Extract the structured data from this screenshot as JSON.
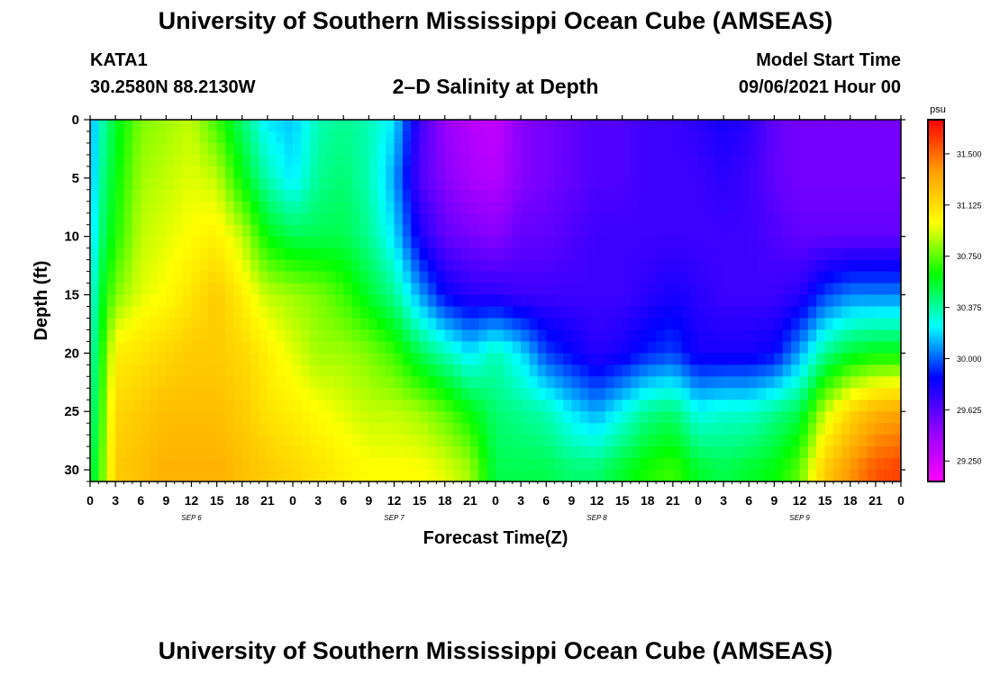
{
  "header": {
    "title": "University of Southern Mississippi Ocean Cube (AMSEAS)",
    "station": "KATA1",
    "coords": "30.2580N  88.2130W",
    "plot_title": "2–D Salinity at Depth",
    "start_label": "Model Start Time",
    "start_value": "09/06/2021 Hour 00"
  },
  "footer": {
    "title": "University of Southern Mississippi Ocean Cube (AMSEAS)"
  },
  "chart_data": {
    "type": "heatmap",
    "title": "2–D Salinity at Depth",
    "xlabel": "Forecast Time(Z)",
    "ylabel": "Depth (ft)",
    "x_hours_range": [
      0,
      96
    ],
    "x_tick_labels": [
      "0",
      "3",
      "6",
      "9",
      "12",
      "15",
      "18",
      "21",
      "0",
      "3",
      "6",
      "9",
      "12",
      "15",
      "18",
      "21",
      "0",
      "3",
      "6",
      "9",
      "12",
      "15",
      "18",
      "21",
      "0",
      "3",
      "6",
      "9",
      "12",
      "15",
      "18",
      "21",
      "0"
    ],
    "day_labels": [
      {
        "text": "SEP 6",
        "hour": 12
      },
      {
        "text": "SEP 7",
        "hour": 36
      },
      {
        "text": "SEP 8",
        "hour": 60
      },
      {
        "text": "SEP 9",
        "hour": 84
      }
    ],
    "y_range": [
      0,
      31
    ],
    "y_ticks": [
      0,
      5,
      10,
      15,
      20,
      25,
      30
    ],
    "colorbar": {
      "unit": "psu",
      "range": [
        29.1,
        31.75
      ],
      "ticks": [
        "31.500",
        "31.125",
        "30.750",
        "30.375",
        "30.000",
        "29.625",
        "29.250"
      ],
      "tick_values": [
        31.5,
        31.125,
        30.75,
        30.375,
        30.0,
        29.625,
        29.25
      ],
      "colors": [
        "#ff00ff",
        "#9000ff",
        "#0000ff",
        "#00ffff",
        "#00ff00",
        "#ffff00",
        "#ffa000",
        "#ff0000"
      ]
    },
    "salinity_grid": {
      "hours": [
        0,
        1,
        3,
        6,
        9,
        12,
        15,
        18,
        21,
        24,
        27,
        30,
        33,
        36,
        39,
        42,
        45,
        48,
        51,
        54,
        57,
        60,
        63,
        66,
        69,
        72,
        75,
        78,
        81,
        84,
        87,
        90,
        93,
        96
      ],
      "depths": [
        0,
        5,
        10,
        15,
        20,
        25,
        30
      ],
      "values": [
        [
          30.05,
          30.05,
          30.1,
          30.2,
          30.3,
          30.35,
          30.45
        ],
        [
          30.3,
          30.35,
          30.4,
          30.5,
          30.55,
          30.6,
          30.65
        ],
        [
          30.55,
          30.6,
          30.65,
          30.8,
          31.05,
          31.15,
          31.2
        ],
        [
          30.8,
          30.85,
          30.9,
          30.95,
          31.1,
          31.2,
          31.25
        ],
        [
          30.85,
          30.9,
          30.95,
          31.0,
          31.15,
          31.25,
          31.3
        ],
        [
          30.9,
          30.95,
          31.0,
          31.1,
          31.2,
          31.25,
          31.3
        ],
        [
          30.7,
          30.9,
          31.05,
          31.2,
          31.2,
          31.25,
          31.3
        ],
        [
          30.45,
          30.6,
          30.9,
          31.05,
          31.15,
          31.2,
          31.25
        ],
        [
          30.2,
          30.35,
          30.6,
          30.9,
          31.05,
          31.1,
          31.2
        ],
        [
          30.15,
          30.2,
          30.5,
          30.85,
          30.95,
          31.05,
          31.15
        ],
        [
          30.35,
          30.4,
          30.5,
          30.8,
          30.85,
          31.0,
          31.1
        ],
        [
          30.4,
          30.45,
          30.5,
          30.7,
          30.85,
          30.95,
          31.05
        ],
        [
          30.35,
          30.35,
          30.4,
          30.55,
          30.8,
          30.9,
          31.0
        ],
        [
          30.2,
          30.1,
          30.2,
          30.4,
          30.7,
          30.9,
          31.0
        ],
        [
          29.7,
          29.65,
          29.8,
          30.1,
          30.5,
          30.85,
          31.0
        ],
        [
          29.45,
          29.5,
          29.6,
          29.85,
          30.35,
          30.75,
          30.95
        ],
        [
          29.35,
          29.4,
          29.55,
          29.75,
          30.2,
          30.6,
          30.85
        ],
        [
          29.3,
          29.35,
          29.5,
          29.75,
          30.35,
          30.45,
          30.5
        ],
        [
          29.5,
          29.5,
          29.6,
          29.7,
          30.2,
          30.4,
          30.5
        ],
        [
          29.55,
          29.55,
          29.6,
          29.7,
          29.95,
          30.35,
          30.5
        ],
        [
          29.6,
          29.6,
          29.65,
          29.7,
          29.85,
          30.2,
          30.45
        ],
        [
          29.65,
          29.65,
          29.7,
          29.7,
          29.75,
          30.1,
          30.45
        ],
        [
          29.65,
          29.65,
          29.7,
          29.7,
          29.8,
          30.25,
          30.55
        ],
        [
          29.7,
          29.7,
          29.7,
          29.75,
          29.9,
          30.4,
          30.65
        ],
        [
          29.7,
          29.7,
          29.7,
          29.8,
          29.95,
          30.45,
          30.7
        ],
        [
          29.75,
          29.7,
          29.7,
          29.75,
          29.8,
          30.25,
          30.55
        ],
        [
          29.8,
          29.75,
          29.7,
          29.7,
          29.8,
          30.3,
          30.5
        ],
        [
          29.75,
          29.7,
          29.7,
          29.7,
          29.8,
          30.3,
          30.55
        ],
        [
          29.6,
          29.6,
          29.65,
          29.7,
          29.85,
          30.4,
          30.6
        ],
        [
          29.55,
          29.55,
          29.6,
          29.75,
          30.1,
          30.5,
          30.75
        ],
        [
          29.55,
          29.55,
          29.6,
          29.95,
          30.4,
          30.9,
          31.2
        ],
        [
          29.55,
          29.55,
          29.6,
          30.05,
          30.55,
          31.15,
          31.4
        ],
        [
          29.55,
          29.55,
          29.6,
          30.05,
          30.6,
          31.3,
          31.55
        ],
        [
          29.55,
          29.55,
          29.6,
          30.05,
          30.6,
          31.35,
          31.6
        ]
      ]
    }
  }
}
